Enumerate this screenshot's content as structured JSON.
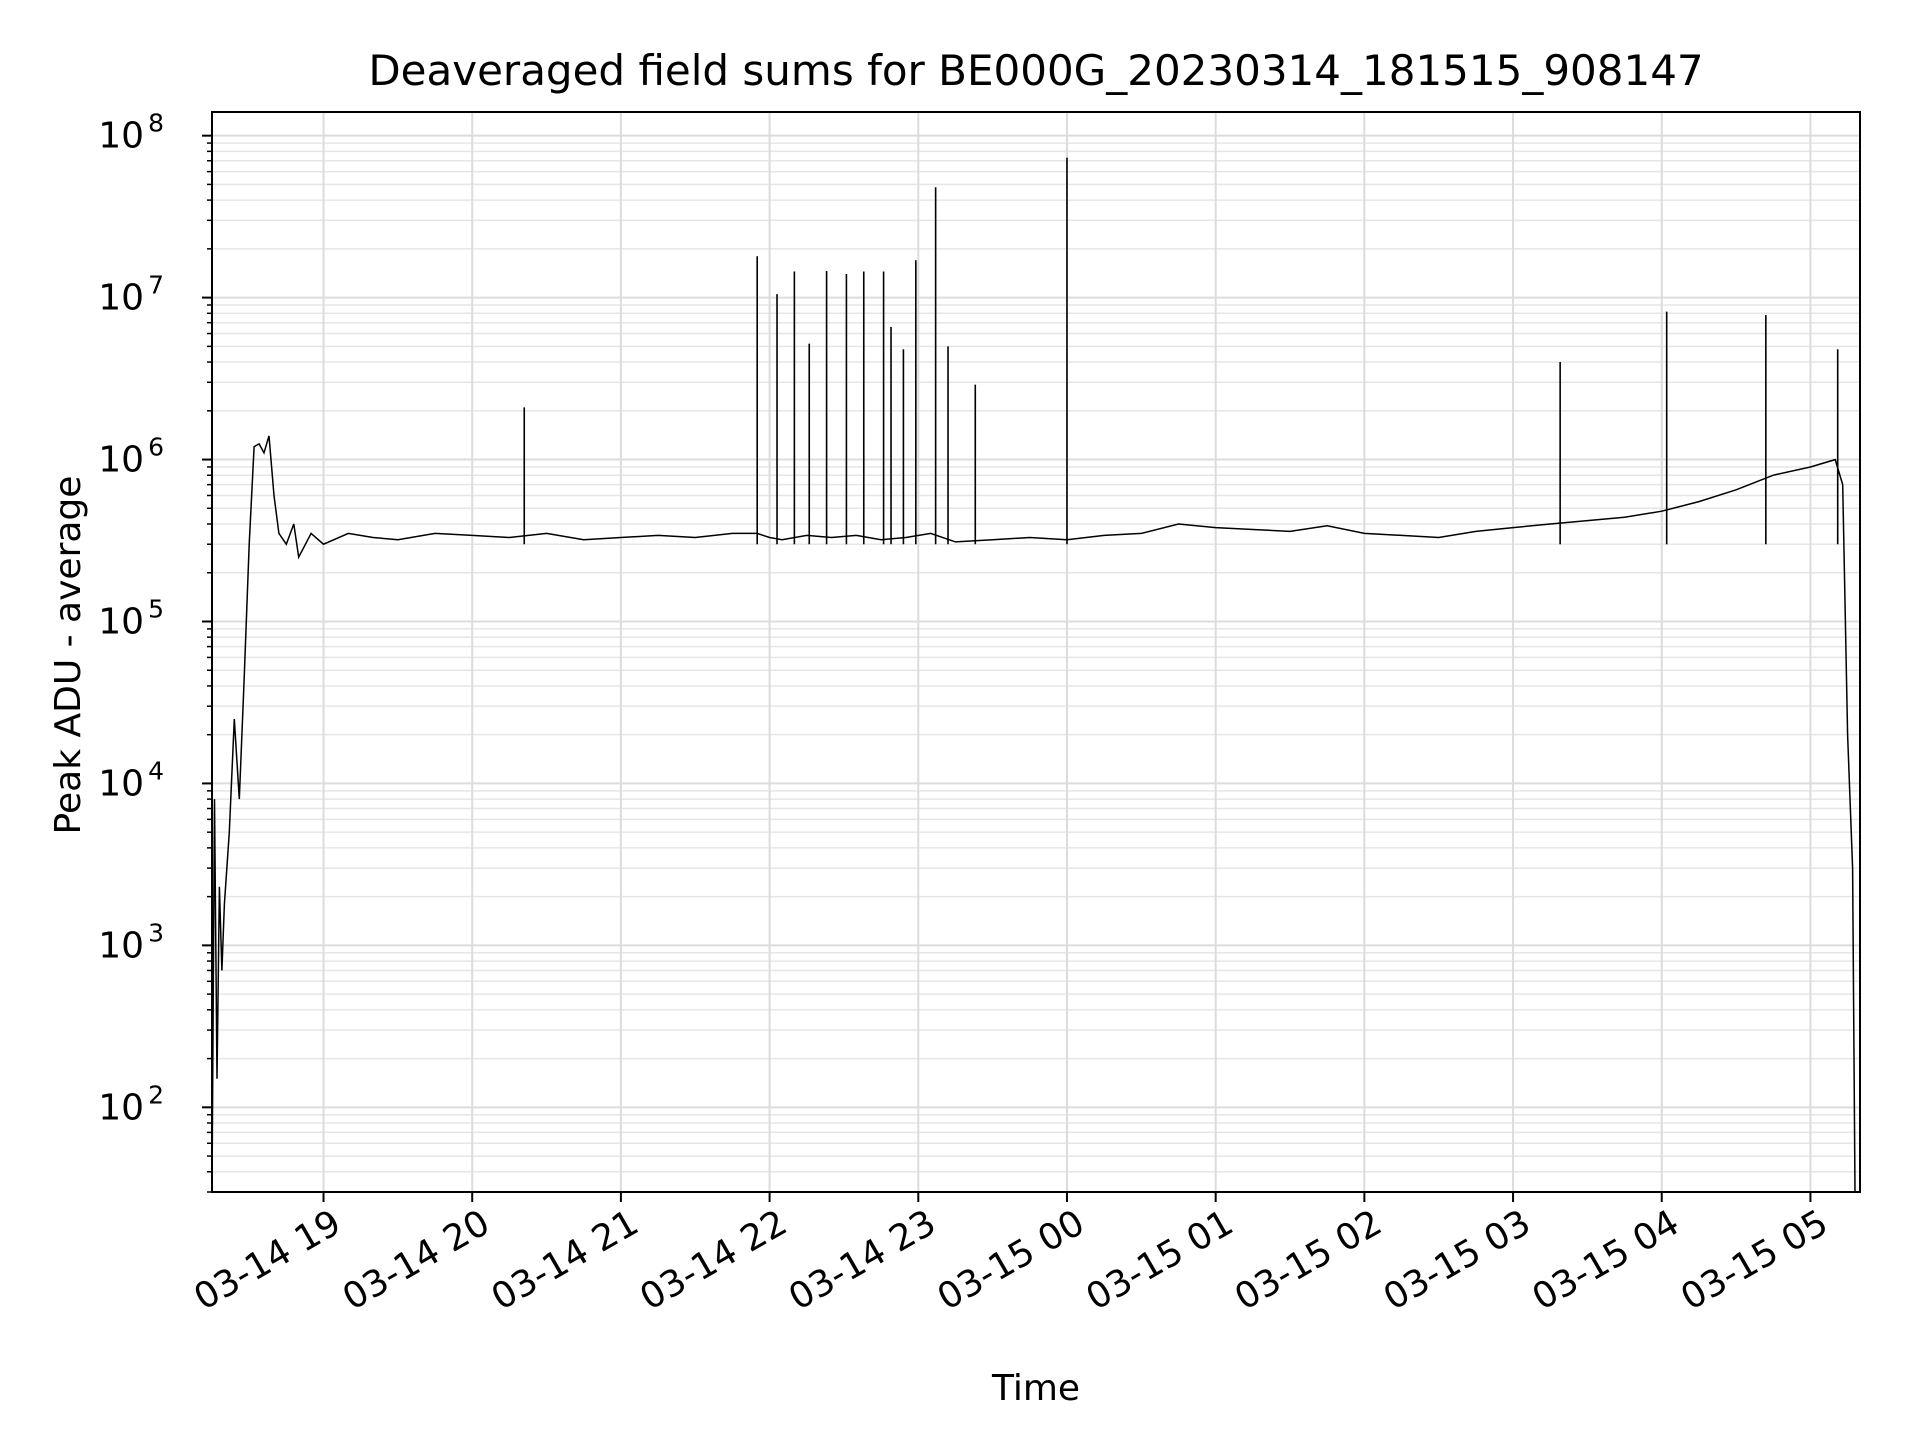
{
  "chart_data": {
    "type": "line",
    "title": "Deaveraged field sums for BE000G_20230314_181515_908147",
    "xlabel": "Time",
    "ylabel": "Peak ADU - average",
    "yscale": "log",
    "ylim": [
      30,
      140000000
    ],
    "xlim": [
      "2023-03-14 18:15",
      "2023-03-15 05:20"
    ],
    "grid": "on (major and minor)",
    "line_color": "#000000",
    "x_ticks": [
      "03-14 19",
      "03-14 20",
      "03-14 21",
      "03-14 22",
      "03-14 23",
      "03-15 00",
      "03-15 01",
      "03-15 02",
      "03-15 03",
      "03-15 04",
      "03-15 05"
    ],
    "y_ticks": [
      {
        "value": 100,
        "base": "10",
        "exp": "2"
      },
      {
        "value": 1000,
        "base": "10",
        "exp": "3"
      },
      {
        "value": 10000,
        "base": "10",
        "exp": "4"
      },
      {
        "value": 100000,
        "base": "10",
        "exp": "5"
      },
      {
        "value": 1000000,
        "base": "10",
        "exp": "6"
      },
      {
        "value": 10000000,
        "base": "10",
        "exp": "7"
      },
      {
        "value": 100000000,
        "base": "10",
        "exp": "8"
      }
    ],
    "series": [
      {
        "x": [
          "2023-03-14 18:15",
          "2023-03-14 18:16",
          "2023-03-14 18:17",
          "2023-03-14 18:18",
          "2023-03-14 18:19",
          "2023-03-14 18:20",
          "2023-03-14 18:22",
          "2023-03-14 18:24",
          "2023-03-14 18:26",
          "2023-03-14 18:28",
          "2023-03-14 18:30",
          "2023-03-14 18:32",
          "2023-03-14 18:34",
          "2023-03-14 18:36",
          "2023-03-14 18:38",
          "2023-03-14 18:40",
          "2023-03-14 18:42",
          "2023-03-14 18:45",
          "2023-03-14 18:48",
          "2023-03-14 18:50",
          "2023-03-14 18:55",
          "2023-03-14 19:00",
          "2023-03-14 19:10",
          "2023-03-14 19:20",
          "2023-03-14 19:30",
          "2023-03-14 19:45",
          "2023-03-14 20:00",
          "2023-03-14 20:15",
          "2023-03-14 20:30",
          "2023-03-14 20:45",
          "2023-03-14 21:00",
          "2023-03-14 21:15",
          "2023-03-14 21:30",
          "2023-03-14 21:45",
          "2023-03-14 21:55",
          "2023-03-14 22:00",
          "2023-03-14 22:05",
          "2023-03-14 22:15",
          "2023-03-14 22:25",
          "2023-03-14 22:35",
          "2023-03-14 22:45",
          "2023-03-14 22:55",
          "2023-03-14 23:05",
          "2023-03-14 23:15",
          "2023-03-14 23:30",
          "2023-03-14 23:45",
          "2023-03-15 00:00",
          "2023-03-15 00:15",
          "2023-03-15 00:30",
          "2023-03-15 00:45",
          "2023-03-15 01:00",
          "2023-03-15 01:15",
          "2023-03-15 01:30",
          "2023-03-15 01:45",
          "2023-03-15 02:00",
          "2023-03-15 02:15",
          "2023-03-15 02:30",
          "2023-03-15 02:45",
          "2023-03-15 03:00",
          "2023-03-15 03:15",
          "2023-03-15 03:30",
          "2023-03-15 03:45",
          "2023-03-15 04:00",
          "2023-03-15 04:15",
          "2023-03-15 04:30",
          "2023-03-15 04:45",
          "2023-03-15 05:00",
          "2023-03-15 05:10",
          "2023-03-15 05:13",
          "2023-03-15 05:15",
          "2023-03-15 05:17",
          "2023-03-15 05:18"
        ],
        "values": [
          30,
          8000,
          150,
          2300,
          700,
          1800,
          5000,
          25000,
          8000,
          45000,
          300000,
          1200000,
          1250000,
          1100000,
          1400000,
          600000,
          350000,
          300000,
          400000,
          250000,
          350000,
          300000,
          350000,
          330000,
          320000,
          350000,
          340000,
          330000,
          350000,
          320000,
          330000,
          340000,
          330000,
          350000,
          350000,
          330000,
          320000,
          340000,
          330000,
          340000,
          320000,
          330000,
          350000,
          310000,
          320000,
          330000,
          320000,
          340000,
          350000,
          400000,
          380000,
          370000,
          360000,
          390000,
          350000,
          340000,
          330000,
          360000,
          380000,
          400000,
          420000,
          440000,
          480000,
          550000,
          650000,
          800000,
          900000,
          1000000,
          700000,
          20000,
          3000,
          30
        ]
      },
      {
        "x": [
          "2023-03-14 21:55",
          "2023-03-14 22:03",
          "2023-03-14 22:10",
          "2023-03-14 22:16",
          "2023-03-14 22:23",
          "2023-03-14 22:31",
          "2023-03-14 22:38",
          "2023-03-14 22:46",
          "2023-03-14 22:49",
          "2023-03-14 22:54",
          "2023-03-14 22:59",
          "2023-03-14 23:07",
          "2023-03-14 23:12",
          "2023-03-14 23:23",
          "2023-03-15 00:00",
          "2023-03-14 20:21",
          "2023-03-15 03:19",
          "2023-03-15 04:02",
          "2023-03-15 04:42",
          "2023-03-15 05:11"
        ],
        "values": [
          18000000,
          10500000,
          14500000,
          5200000,
          14600000,
          14000000,
          14500000,
          14500000,
          6600000,
          4800000,
          17000000,
          48000000,
          5000000,
          2900000,
          73000000,
          2100000,
          4000000,
          8200000,
          7800000,
          4800000
        ]
      }
    ]
  }
}
